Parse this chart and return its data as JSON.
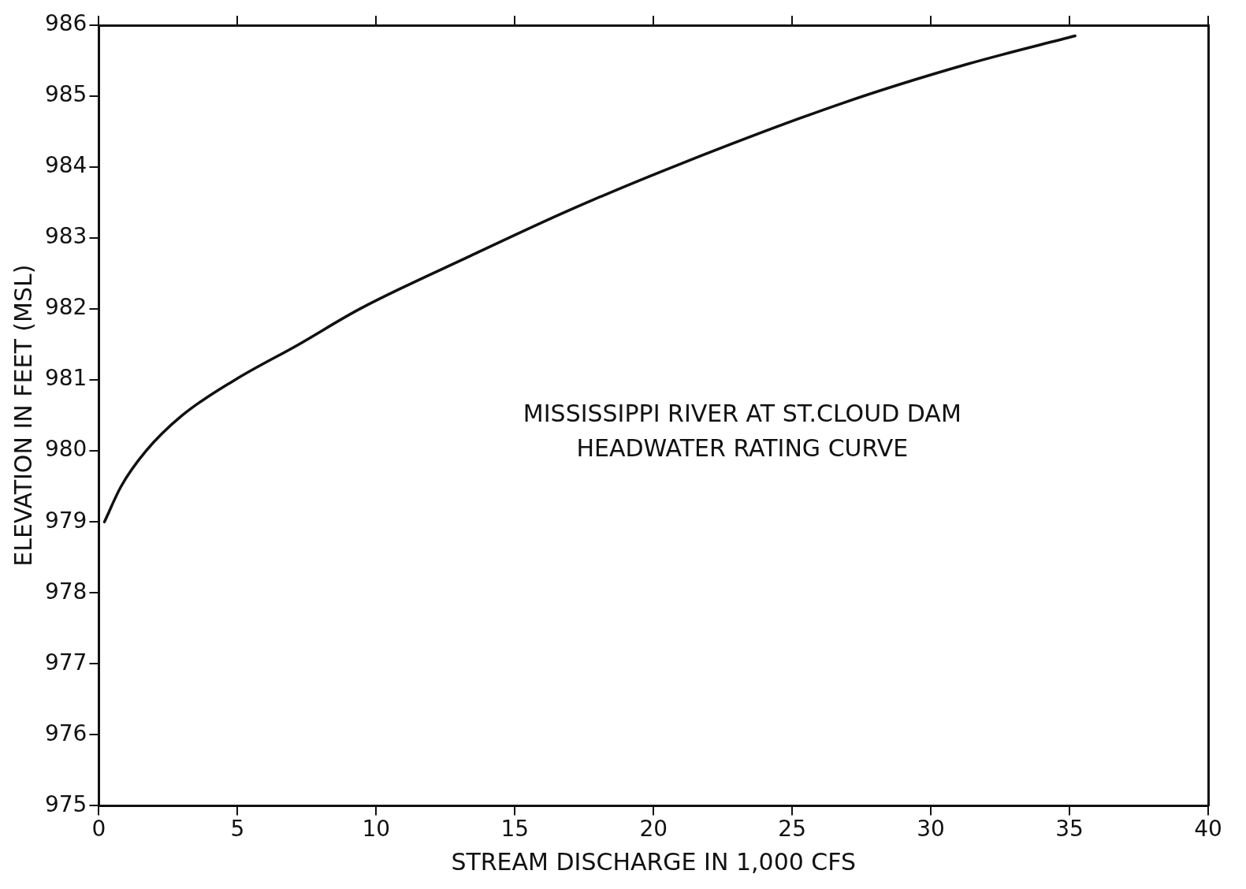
{
  "chart_data": {
    "type": "line",
    "xlabel": "STREAM DISCHARGE IN 1,000 CFS",
    "ylabel": "ELEVATION IN FEET (MSL)",
    "annotations": [
      "MISSISSIPPI RIVER AT ST.CLOUD DAM",
      "HEADWATER RATING CURVE"
    ],
    "series": [
      {
        "color": "#111111",
        "x": [
          0.2,
          0.8,
          1.7,
          3.0,
          4.9,
          7.2,
          9.4,
          13.4,
          17.0,
          21.0,
          26.8,
          31.3,
          35.2
        ],
        "values": [
          979.0,
          979.5,
          980.0,
          980.5,
          981.0,
          981.5,
          982.0,
          982.75,
          983.4,
          984.05,
          984.9,
          985.45,
          985.85
        ]
      }
    ],
    "xlim": [
      0,
      40
    ],
    "xticks": [
      0,
      5,
      10,
      15,
      20,
      25,
      30,
      35,
      40
    ],
    "ylim": [
      975,
      986
    ],
    "yticks": [
      975,
      976,
      977,
      978,
      979,
      980,
      981,
      982,
      983,
      984,
      985,
      986
    ],
    "grid": false,
    "legend": false,
    "marker": "none",
    "line_style": "solid"
  }
}
